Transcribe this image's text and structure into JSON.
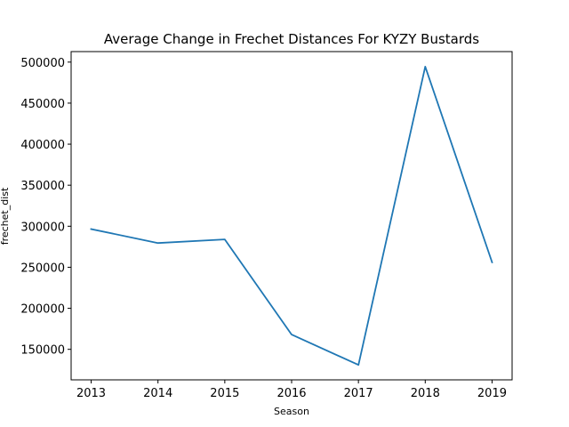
{
  "chart_data": {
    "type": "line",
    "title": "Average Change in Frechet Distances For KYZY Bustards",
    "xlabel": "Season",
    "ylabel": "frechet_dist",
    "x": [
      2013,
      2014,
      2015,
      2016,
      2017,
      2018,
      2019
    ],
    "series": [
      {
        "values": [
          296500,
          279500,
          284000,
          168000,
          131000,
          494500,
          256000
        ],
        "color": "#1f77b4"
      }
    ],
    "xticks": [
      "2013",
      "2014",
      "2015",
      "2016",
      "2017",
      "2018",
      "2019"
    ],
    "yticks": [
      "150000",
      "200000",
      "250000",
      "300000",
      "350000",
      "400000",
      "450000",
      "500000"
    ],
    "xlim": [
      2012.7,
      2019.3
    ],
    "ylim": [
      112800,
      512800
    ],
    "grid": false,
    "legend": "none"
  }
}
